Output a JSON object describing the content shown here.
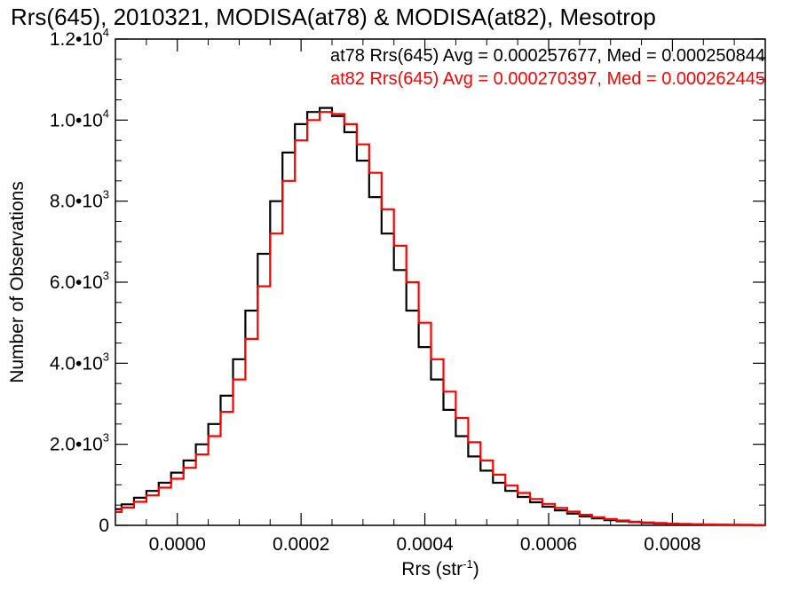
{
  "chart_data": {
    "type": "line",
    "title": "Rrs(645), 2010321, MODISA(at78) & MODISA(at82), Mesotrop",
    "xlabel_base": "Rrs (str",
    "xlabel_sup": "-1",
    "xlabel_end": ")",
    "ylabel": "Number of Observations",
    "xlim": [
      -0.0001,
      0.00095
    ],
    "ylim": [
      0,
      12000
    ],
    "x_ticks": [
      {
        "value": 0.0,
        "label": "0.0000"
      },
      {
        "value": 0.0002,
        "label": "0.0002"
      },
      {
        "value": 0.0004,
        "label": "0.0004"
      },
      {
        "value": 0.0006,
        "label": "0.0006"
      },
      {
        "value": 0.0008,
        "label": "0.0008"
      }
    ],
    "y_ticks": [
      {
        "value": 0,
        "mant": "0",
        "exp": ""
      },
      {
        "value": 2000,
        "mant": "2.0•10",
        "exp": "3"
      },
      {
        "value": 4000,
        "mant": "4.0•10",
        "exp": "3"
      },
      {
        "value": 6000,
        "mant": "6.0•10",
        "exp": "3"
      },
      {
        "value": 8000,
        "mant": "8.0•10",
        "exp": "3"
      },
      {
        "value": 10000,
        "mant": "1.0•10",
        "exp": "4"
      },
      {
        "value": 12000,
        "mant": "1.2•10",
        "exp": "4"
      }
    ],
    "legend": {
      "placement": "top-right",
      "entries": [
        {
          "text": "at78 Rrs(645) Avg = 0.000257677, Med = 0.000250844",
          "color": "#000000"
        },
        {
          "text": "at82 Rrs(645) Avg = 0.000270397, Med = 0.000262445",
          "color": "#ff0000"
        }
      ]
    },
    "series": [
      {
        "color": "#000000",
        "x": [
          -0.0001,
          -8e-05,
          -6e-05,
          -4e-05,
          -2e-05,
          0.0,
          2e-05,
          4e-05,
          6e-05,
          8e-05,
          0.0001,
          0.00012,
          0.00014,
          0.00016,
          0.00018,
          0.0002,
          0.00022,
          0.00024,
          0.00026,
          0.00028,
          0.0003,
          0.00032,
          0.00034,
          0.00036,
          0.00038,
          0.0004,
          0.00042,
          0.00044,
          0.00046,
          0.00048,
          0.0005,
          0.00052,
          0.00054,
          0.00056,
          0.00058,
          0.0006,
          0.00062,
          0.00064,
          0.00066,
          0.00068,
          0.0007,
          0.00072,
          0.00074,
          0.00076,
          0.00078,
          0.0008,
          0.00082,
          0.00084,
          0.00086,
          0.00088,
          0.0009,
          0.00092,
          0.00094
        ],
        "y": [
          400,
          520,
          680,
          850,
          1050,
          1300,
          1600,
          2000,
          2500,
          3200,
          4100,
          5300,
          6700,
          8000,
          9200,
          9900,
          10200,
          10300,
          10100,
          9700,
          9000,
          8100,
          7200,
          6300,
          5300,
          4400,
          3600,
          2850,
          2200,
          1700,
          1350,
          1050,
          850,
          700,
          570,
          460,
          370,
          290,
          220,
          170,
          130,
          100,
          80,
          60,
          48,
          38,
          30,
          24,
          19,
          15,
          12,
          10,
          8
        ]
      },
      {
        "color": "#ff0000",
        "x": [
          -0.0001,
          -8e-05,
          -6e-05,
          -4e-05,
          -2e-05,
          0.0,
          2e-05,
          4e-05,
          6e-05,
          8e-05,
          0.0001,
          0.00012,
          0.00014,
          0.00016,
          0.00018,
          0.0002,
          0.00022,
          0.00024,
          0.00026,
          0.00028,
          0.0003,
          0.00032,
          0.00034,
          0.00036,
          0.00038,
          0.0004,
          0.00042,
          0.00044,
          0.00046,
          0.00048,
          0.0005,
          0.00052,
          0.00054,
          0.00056,
          0.00058,
          0.0006,
          0.00062,
          0.00064,
          0.00066,
          0.00068,
          0.0007,
          0.00072,
          0.00074,
          0.00076,
          0.00078,
          0.0008,
          0.00082,
          0.00084,
          0.00086,
          0.00088,
          0.0009,
          0.00092,
          0.00094
        ],
        "y": [
          330,
          440,
          580,
          740,
          930,
          1150,
          1420,
          1750,
          2200,
          2800,
          3600,
          4600,
          5900,
          7200,
          8500,
          9500,
          10000,
          10200,
          10150,
          9900,
          9400,
          8700,
          7800,
          6900,
          6000,
          5000,
          4100,
          3300,
          2650,
          2050,
          1600,
          1250,
          980,
          800,
          650,
          530,
          430,
          340,
          260,
          200,
          155,
          120,
          92,
          72,
          56,
          44,
          35,
          27,
          21,
          17,
          13,
          10,
          8
        ]
      }
    ]
  }
}
